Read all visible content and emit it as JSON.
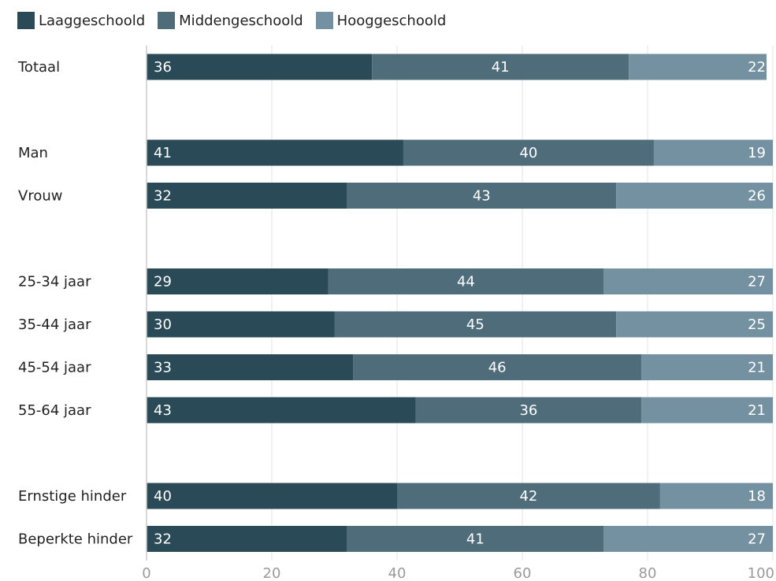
{
  "chart_data": {
    "type": "bar",
    "orientation": "horizontal",
    "stacked": true,
    "legend_position": "top-left",
    "grid": true,
    "xlim": [
      0,
      100
    ],
    "xticks": [
      0,
      20,
      40,
      60,
      80,
      100
    ],
    "xtick_labels": [
      "0",
      "20",
      "40",
      "60",
      "80",
      "100"
    ],
    "categories": [
      "Totaal",
      "",
      "Man",
      "Vrouw",
      "",
      "25-34 jaar",
      "35-44 jaar",
      "45-54 jaar",
      "55-64 jaar",
      "",
      "Ernstige hinder",
      "Beperkte hinder"
    ],
    "series": [
      {
        "name": "Laaggeschoold",
        "color": "#2b4a57",
        "values": [
          36,
          null,
          41,
          32,
          null,
          29,
          30,
          33,
          43,
          null,
          40,
          32
        ]
      },
      {
        "name": "Middengeschoold",
        "color": "#4e6c7a",
        "values": [
          41,
          null,
          40,
          43,
          null,
          44,
          45,
          46,
          36,
          null,
          42,
          41
        ]
      },
      {
        "name": "Hooggeschoold",
        "color": "#7391a0",
        "values": [
          22,
          null,
          19,
          26,
          null,
          27,
          25,
          21,
          21,
          null,
          18,
          27
        ]
      }
    ]
  }
}
